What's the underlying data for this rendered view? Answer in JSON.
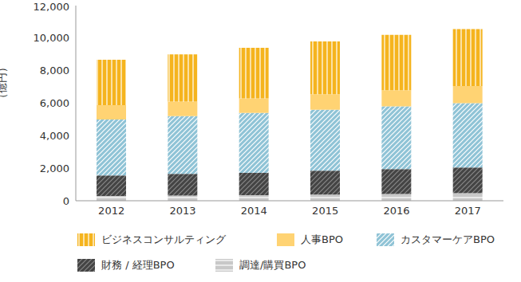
{
  "chart_data": {
    "type": "bar",
    "stacked": true,
    "y_label": "（億円）",
    "categories": [
      "2012",
      "2013",
      "2014",
      "2015",
      "2016",
      "2017"
    ],
    "series": [
      {
        "name": "調達/購買BPO",
        "color": "#c8c8c8",
        "values": [
          300,
          320,
          340,
          380,
          420,
          460
        ]
      },
      {
        "name": "財務 / 経理BPO",
        "color": "#444444",
        "values": [
          1250,
          1330,
          1380,
          1470,
          1530,
          1590
        ]
      },
      {
        "name": "カスタマーケアBPO",
        "color": "#8fc3d6",
        "values": [
          3450,
          3550,
          3680,
          3750,
          3850,
          3950
        ]
      },
      {
        "name": "人事BPO",
        "color": "#ffd373",
        "values": [
          880,
          900,
          900,
          950,
          1000,
          1050
        ]
      },
      {
        "name": "ビジネスコンサルティング",
        "color": "#f5b41e",
        "values": [
          2790,
          2900,
          3100,
          3250,
          3400,
          3500
        ]
      }
    ],
    "ylim": [
      0,
      12000
    ],
    "yticks": [
      0,
      {
        "value": 2000,
        "label": "2,000"
      },
      {
        "value": 4000,
        "label": "4,000"
      },
      {
        "value": 6000,
        "label": "6,000"
      },
      {
        "value": 8000,
        "label": "8,000"
      },
      {
        "value": 10000,
        "label": "10,000"
      },
      {
        "value": 12000,
        "label": "12,000"
      }
    ],
    "grid": false,
    "legend": "bottom"
  }
}
